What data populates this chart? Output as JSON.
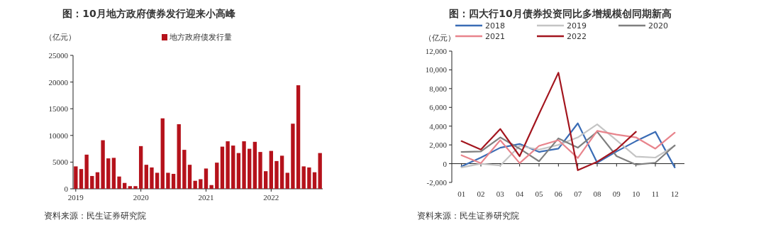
{
  "chart_data": [
    {
      "type": "bar",
      "title": "图：10月地方政府债券发行迎来小高峰",
      "ylabel": "（亿元）",
      "legend": "top",
      "categories": [
        "2019",
        null,
        null,
        null,
        null,
        null,
        null,
        null,
        null,
        null,
        null,
        null,
        "2020",
        null,
        null,
        null,
        null,
        null,
        null,
        null,
        null,
        null,
        null,
        null,
        "2021",
        null,
        null,
        null,
        null,
        null,
        null,
        null,
        null,
        null,
        null,
        null,
        "2022",
        null,
        null,
        null,
        null,
        null,
        null,
        null,
        null,
        null
      ],
      "series": [
        {
          "name": "地方政府债发行量",
          "color": "#b5121b",
          "values": [
            4200,
            3700,
            6400,
            2400,
            3100,
            9100,
            5700,
            5800,
            2300,
            1100,
            500,
            500,
            8000,
            4500,
            4000,
            3000,
            13200,
            3000,
            2800,
            12100,
            7300,
            4500,
            1500,
            1800,
            3800,
            700,
            4900,
            7900,
            8900,
            8100,
            6700,
            8900,
            7500,
            8800,
            6900,
            3300,
            7100,
            5200,
            6200,
            3000,
            12200,
            19400,
            4200,
            4000,
            3100,
            6700
          ]
        }
      ],
      "ylim": [
        0,
        25000
      ],
      "yticks": [
        0,
        5000,
        10000,
        15000,
        20000,
        25000
      ],
      "annotations": [
        "资料来源：民生证券研究院"
      ]
    },
    {
      "type": "line",
      "title": "图：四大行10月债券投资同比多增规模创同期新高",
      "ylabel": "（亿元）",
      "legend": "top",
      "categories": [
        "01",
        "02",
        "03",
        "04",
        "05",
        "06",
        "07",
        "08",
        "09",
        "10",
        "11",
        "12"
      ],
      "series": [
        {
          "name": "2018",
          "color": "#3a6cb5",
          "values": [
            -300,
            650,
            1700,
            2100,
            1250,
            1600,
            4300,
            100,
            1300,
            2400,
            3400,
            -400
          ]
        },
        {
          "name": "2019",
          "color": "#c4c4c4",
          "values": [
            -400,
            0,
            -200,
            1900,
            1500,
            2000,
            2800,
            4200,
            2500,
            750,
            650,
            1900
          ]
        },
        {
          "name": "2020",
          "color": "#7f7f7f",
          "values": [
            1250,
            1300,
            2800,
            1600,
            250,
            2700,
            1700,
            3400,
            800,
            -100,
            100,
            1950
          ]
        },
        {
          "name": "2021",
          "color": "#e8848c",
          "values": [
            900,
            50,
            2500,
            50,
            1900,
            2500,
            600,
            3500,
            3100,
            2800,
            1600,
            3300
          ]
        },
        {
          "name": "2022",
          "color": "#a3151e",
          "values": [
            2400,
            1500,
            3700,
            800,
            5300,
            9700,
            -700,
            200,
            1500,
            3400,
            null,
            null
          ]
        }
      ],
      "ylim": [
        -2000,
        12000
      ],
      "yticks": [
        {
          "value": -2000,
          "label": "-2,000"
        },
        0,
        {
          "value": 2000,
          "label": "2,000"
        },
        {
          "value": 4000,
          "label": "4,000"
        },
        {
          "value": 6000,
          "label": "6,000"
        },
        {
          "value": 8000,
          "label": "8,000"
        },
        {
          "value": 10000,
          "label": "10,000"
        },
        {
          "value": 12000,
          "label": "12,000"
        }
      ],
      "annotations": [
        "资料来源：民生证券研究院"
      ]
    }
  ]
}
